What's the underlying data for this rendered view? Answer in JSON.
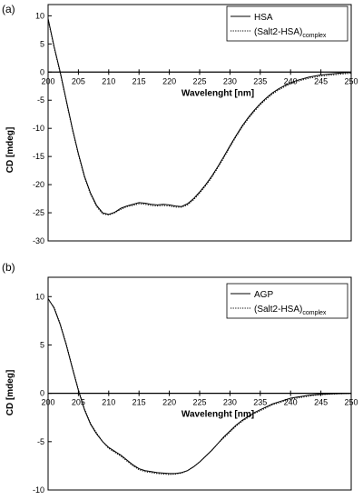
{
  "chart_data": [
    {
      "panel_label": "(a)",
      "type": "line",
      "xlabel": "Wavelenght [nm]",
      "ylabel": "CD [mdeg]",
      "xlim": [
        200,
        250
      ],
      "ylim": [
        -30,
        12
      ],
      "xticks": [
        200,
        205,
        210,
        215,
        220,
        225,
        230,
        235,
        240,
        245,
        250
      ],
      "yticks": [
        10,
        5,
        0,
        -5,
        -10,
        -15,
        -20,
        -25,
        -30
      ],
      "legend_position": "top-right",
      "series": [
        {
          "name": "HSA",
          "sub": "",
          "style": "solid",
          "x": [
            200,
            201,
            202,
            203,
            204,
            205,
            206,
            207,
            208,
            209,
            210,
            211,
            212,
            213,
            214,
            215,
            216,
            217,
            218,
            219,
            220,
            221,
            222,
            223,
            224,
            225,
            226,
            227,
            228,
            229,
            230,
            231,
            232,
            233,
            234,
            235,
            236,
            237,
            238,
            239,
            240,
            241,
            242,
            243,
            244,
            245,
            246,
            247,
            248,
            249,
            250
          ],
          "y": [
            9.5,
            4.5,
            0,
            -5,
            -10,
            -14.5,
            -18.5,
            -21.5,
            -23.7,
            -25,
            -25.3,
            -24.9,
            -24.2,
            -23.8,
            -23.5,
            -23.2,
            -23.3,
            -23.5,
            -23.6,
            -23.5,
            -23.6,
            -23.8,
            -23.9,
            -23.4,
            -22.5,
            -21.3,
            -20,
            -18.5,
            -16.8,
            -15,
            -13.1,
            -11.3,
            -9.6,
            -8.1,
            -6.8,
            -5.6,
            -4.6,
            -3.7,
            -3,
            -2.4,
            -1.9,
            -1.5,
            -1.2,
            -0.9,
            -0.7,
            -0.5,
            -0.4,
            -0.3,
            -0.2,
            -0.1,
            -0.05
          ]
        },
        {
          "name": "(Salt2-HSA)",
          "sub": "complex",
          "style": "dotted",
          "x": [
            200,
            201,
            202,
            203,
            204,
            205,
            206,
            207,
            208,
            209,
            210,
            211,
            212,
            213,
            214,
            215,
            216,
            217,
            218,
            219,
            220,
            221,
            222,
            223,
            224,
            225,
            226,
            227,
            228,
            229,
            230,
            231,
            232,
            233,
            234,
            235,
            236,
            237,
            238,
            239,
            240,
            241,
            242,
            243,
            244,
            245,
            246,
            247,
            248,
            249,
            250
          ],
          "y": [
            9.3,
            4.3,
            -0.2,
            -5.2,
            -10.2,
            -14.7,
            -18.7,
            -21.7,
            -23.9,
            -25.2,
            -25.4,
            -25.0,
            -24.4,
            -23.9,
            -23.7,
            -23.4,
            -23.5,
            -23.7,
            -23.8,
            -23.7,
            -23.8,
            -24.0,
            -24.0,
            -23.6,
            -22.7,
            -21.5,
            -20.2,
            -18.7,
            -17.0,
            -15.2,
            -13.3,
            -11.5,
            -9.8,
            -8.3,
            -7.0,
            -5.8,
            -4.8,
            -3.9,
            -3.2,
            -2.6,
            -2.1,
            -1.7,
            -1.4,
            -1.1,
            -0.9,
            -0.7,
            -0.6,
            -0.5,
            -0.4,
            -0.3,
            -0.2
          ]
        }
      ]
    },
    {
      "panel_label": "(b)",
      "type": "line",
      "xlabel": "Wavelenght [nm]",
      "ylabel": "CD [mdeg]",
      "xlim": [
        200,
        250
      ],
      "ylim": [
        -10,
        12
      ],
      "xticks": [
        200,
        205,
        210,
        215,
        220,
        225,
        230,
        235,
        240,
        245,
        250
      ],
      "yticks": [
        10,
        5,
        0,
        -5,
        -10
      ],
      "legend_position": "top-right",
      "series": [
        {
          "name": "AGP",
          "sub": "",
          "style": "solid",
          "x": [
            200,
            201,
            202,
            203,
            204,
            205,
            206,
            207,
            208,
            209,
            210,
            211,
            212,
            213,
            214,
            215,
            216,
            217,
            218,
            219,
            220,
            221,
            222,
            223,
            224,
            225,
            226,
            227,
            228,
            229,
            230,
            231,
            232,
            233,
            234,
            235,
            236,
            237,
            238,
            239,
            240,
            241,
            242,
            243,
            244,
            245,
            246,
            247,
            248,
            249,
            250
          ],
          "y": [
            9.8,
            8.8,
            7.1,
            5.0,
            2.6,
            0.3,
            -1.7,
            -3.2,
            -4.2,
            -5.0,
            -5.6,
            -6.0,
            -6.4,
            -6.9,
            -7.4,
            -7.8,
            -8.0,
            -8.1,
            -8.2,
            -8.25,
            -8.3,
            -8.3,
            -8.2,
            -8.0,
            -7.6,
            -7.1,
            -6.5,
            -5.9,
            -5.2,
            -4.5,
            -3.9,
            -3.3,
            -2.8,
            -2.4,
            -2.0,
            -1.7,
            -1.4,
            -1.1,
            -0.9,
            -0.7,
            -0.5,
            -0.4,
            -0.3,
            -0.2,
            -0.15,
            -0.1,
            -0.08,
            -0.05,
            -0.03,
            -0.02,
            0
          ]
        },
        {
          "name": "(Salt2-HSA)",
          "sub": "complex",
          "style": "dotted",
          "x": [
            200,
            201,
            202,
            203,
            204,
            205,
            206,
            207,
            208,
            209,
            210,
            211,
            212,
            213,
            214,
            215,
            216,
            217,
            218,
            219,
            220,
            221,
            222,
            223,
            224,
            225,
            226,
            227,
            228,
            229,
            230,
            231,
            232,
            233,
            234,
            235,
            236,
            237,
            238,
            239,
            240,
            241,
            242,
            243,
            244,
            245,
            246,
            247,
            248,
            249,
            250
          ],
          "y": [
            9.7,
            8.9,
            7.2,
            5.1,
            2.7,
            0.4,
            -1.6,
            -3.1,
            -4.1,
            -5.0,
            -5.7,
            -6.1,
            -6.5,
            -7.0,
            -7.5,
            -7.9,
            -8.1,
            -8.2,
            -8.3,
            -8.35,
            -8.4,
            -8.35,
            -8.25,
            -8.0,
            -7.6,
            -7.1,
            -6.5,
            -5.9,
            -5.2,
            -4.6,
            -4.0,
            -3.4,
            -2.9,
            -2.5,
            -2.1,
            -1.8,
            -1.5,
            -1.2,
            -1.0,
            -0.8,
            -0.6,
            -0.5,
            -0.4,
            -0.3,
            -0.2,
            -0.15,
            -0.1,
            -0.08,
            -0.05,
            -0.03,
            -0.02
          ]
        }
      ]
    }
  ]
}
